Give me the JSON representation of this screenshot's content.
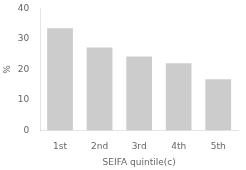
{
  "chart_data": {
    "type": "bar",
    "categories": [
      "1st",
      "2nd",
      "3rd",
      "4th",
      "5th"
    ],
    "values": [
      33.5,
      27.2,
      24.2,
      22.0,
      16.8
    ],
    "color": "#cccccc",
    "xlabel": "SEIFA quintile(c)",
    "ylabel": "%",
    "ylim": [
      0,
      40
    ],
    "yticks": [
      0,
      10,
      20,
      30,
      40
    ],
    "grid": false
  }
}
